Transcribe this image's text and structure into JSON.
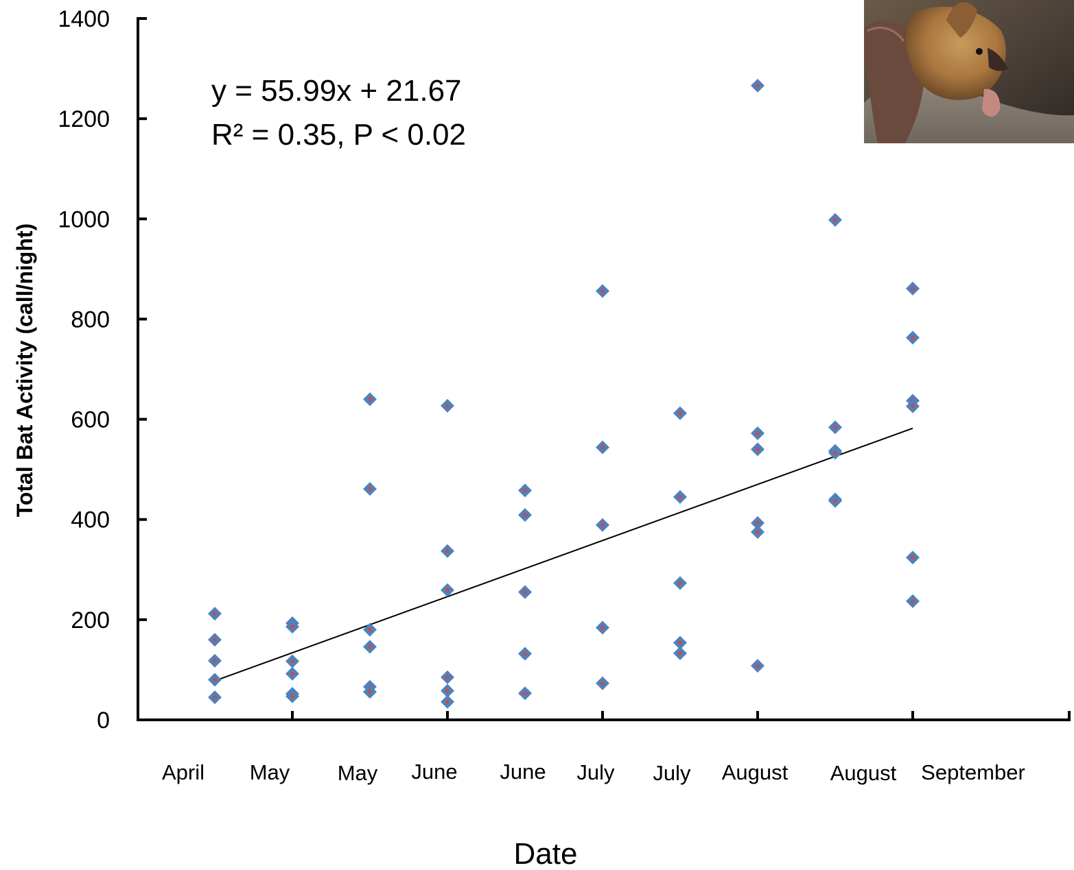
{
  "chart_data": {
    "type": "scatter",
    "title": "",
    "xlabel": "Date",
    "ylabel": "Total Bat Activity (call/night)",
    "ylim": [
      0,
      1400
    ],
    "yticks": [
      0,
      200,
      400,
      600,
      800,
      1000,
      1200,
      1400
    ],
    "categories": [
      "April",
      "May",
      "May",
      "June",
      "June",
      "July",
      "July",
      "August",
      "August",
      "September"
    ],
    "grid": false,
    "legend": "none",
    "marker_color": "#4f81bd",
    "marker_center_color": "#c0504d",
    "trendline_color": "#000000",
    "trendline": {
      "from": {
        "x": 1,
        "y": 78
      },
      "to": {
        "x": 10,
        "y": 582
      }
    },
    "annotations": [
      {
        "text": "y = 55.99x + 21.67"
      },
      {
        "text": "R² = 0.35, P < 0.02"
      }
    ],
    "photo": {
      "icon": "bat-photo"
    },
    "points": [
      {
        "x": 1,
        "y": 212
      },
      {
        "x": 1,
        "y": 160
      },
      {
        "x": 1,
        "y": 118
      },
      {
        "x": 1,
        "y": 80
      },
      {
        "x": 1,
        "y": 45
      },
      {
        "x": 2,
        "y": 193
      },
      {
        "x": 2,
        "y": 186
      },
      {
        "x": 2,
        "y": 117
      },
      {
        "x": 2,
        "y": 92
      },
      {
        "x": 2,
        "y": 52
      },
      {
        "x": 2,
        "y": 47
      },
      {
        "x": 3,
        "y": 640
      },
      {
        "x": 3,
        "y": 461
      },
      {
        "x": 3,
        "y": 180
      },
      {
        "x": 3,
        "y": 146
      },
      {
        "x": 3,
        "y": 66
      },
      {
        "x": 3,
        "y": 56
      },
      {
        "x": 4,
        "y": 627
      },
      {
        "x": 4,
        "y": 337
      },
      {
        "x": 4,
        "y": 259
      },
      {
        "x": 4,
        "y": 85
      },
      {
        "x": 4,
        "y": 58
      },
      {
        "x": 4,
        "y": 36
      },
      {
        "x": 5,
        "y": 458
      },
      {
        "x": 5,
        "y": 409
      },
      {
        "x": 5,
        "y": 255
      },
      {
        "x": 5,
        "y": 132
      },
      {
        "x": 5,
        "y": 53
      },
      {
        "x": 6,
        "y": 856
      },
      {
        "x": 6,
        "y": 544
      },
      {
        "x": 6,
        "y": 389
      },
      {
        "x": 6,
        "y": 184
      },
      {
        "x": 6,
        "y": 73
      },
      {
        "x": 7,
        "y": 612
      },
      {
        "x": 7,
        "y": 445
      },
      {
        "x": 7,
        "y": 273
      },
      {
        "x": 7,
        "y": 154
      },
      {
        "x": 7,
        "y": 133
      },
      {
        "x": 8,
        "y": 1266
      },
      {
        "x": 8,
        "y": 572
      },
      {
        "x": 8,
        "y": 540
      },
      {
        "x": 8,
        "y": 393
      },
      {
        "x": 8,
        "y": 375
      },
      {
        "x": 8,
        "y": 108
      },
      {
        "x": 9,
        "y": 998
      },
      {
        "x": 9,
        "y": 584
      },
      {
        "x": 9,
        "y": 537
      },
      {
        "x": 9,
        "y": 533
      },
      {
        "x": 9,
        "y": 440
      },
      {
        "x": 9,
        "y": 437
      },
      {
        "x": 10,
        "y": 861
      },
      {
        "x": 10,
        "y": 763
      },
      {
        "x": 10,
        "y": 637
      },
      {
        "x": 10,
        "y": 626
      },
      {
        "x": 10,
        "y": 324
      },
      {
        "x": 10,
        "y": 237
      }
    ]
  }
}
